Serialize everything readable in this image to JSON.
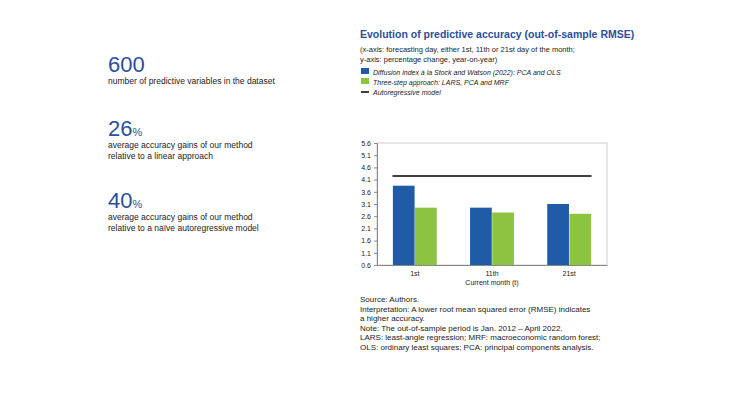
{
  "highlights": [
    {
      "figure": "600",
      "unit": "",
      "text": [
        "number of predictive variables in the dataset"
      ]
    },
    {
      "figure": "26",
      "unit": "%",
      "text": [
        "average accuracy gains of our method",
        "relative to a linear approach"
      ]
    },
    {
      "figure": "40",
      "unit": "%",
      "text": [
        "average accuracy gains of our method",
        "relative to a naïve autoregressive model"
      ]
    }
  ],
  "chart_data": {
    "type": "bar",
    "title": "Evolution of predictive accuracy (out-of-sample RMSE)",
    "subtitle": [
      "(x-axis: forecasting day, either 1st, 11th or 21st day of the month;",
      "y-axis: percentage change, year-on-year)"
    ],
    "x_label": "Current month (t)",
    "categories": [
      "1st",
      "11th",
      "21st"
    ],
    "series": [
      {
        "name": "Diffusion index à la Stock and Watson (2022): PCA and OLS",
        "color": "#1f5ba6",
        "type": "bar",
        "values": [
          3.85,
          2.95,
          3.1
        ]
      },
      {
        "name": "Three-step approach: LARS, PCA and MRF",
        "color": "#8cc43f",
        "type": "bar",
        "values": [
          2.95,
          2.75,
          2.7
        ]
      },
      {
        "name": "Autoregressive model",
        "color": "#000000",
        "type": "line",
        "values": [
          4.25,
          4.25,
          4.25
        ]
      }
    ],
    "ylim": [
      0.6,
      5.6
    ],
    "yticks": [
      0.6,
      1.1,
      1.6,
      2.1,
      2.6,
      3.1,
      3.6,
      4.1,
      4.6,
      5.1,
      5.6
    ],
    "grid": false,
    "notes": [
      "Source: Authors.",
      "Interpretation: A lower root mean squared error (RMSE) indicates",
      "a higher accuracy.",
      "Note: The out-of-sample period is Jan. 2012 – April 2022.",
      "LARS: least-angle regression; MRF: macroeconomic random forest;",
      "OLS: ordinary least squares; PCA: principal components analysis."
    ]
  }
}
